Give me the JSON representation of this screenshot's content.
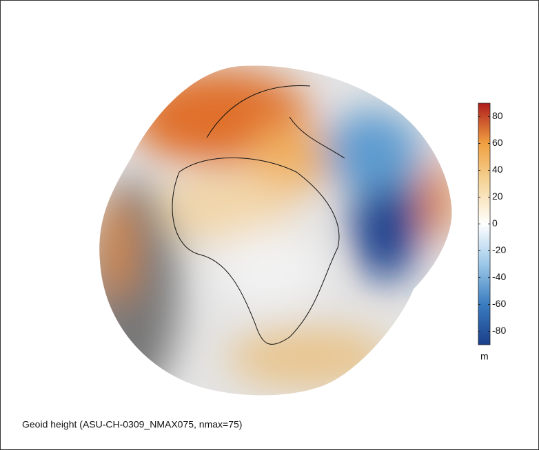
{
  "figure": {
    "caption": "Geoid height (ASU-CH-0309_NMAX075, nmax=75)",
    "colorbar": {
      "lim": [
        -90,
        90
      ],
      "ticks": [
        80,
        60,
        40,
        20,
        0,
        -20,
        -40,
        -60,
        -80
      ],
      "unit": "m",
      "colors": [
        "#1a3f8a",
        "#3a7cc0",
        "#9cc8e8",
        "#ffffff",
        "#f6d79e",
        "#f0a040",
        "#b01c1c"
      ]
    }
  }
}
